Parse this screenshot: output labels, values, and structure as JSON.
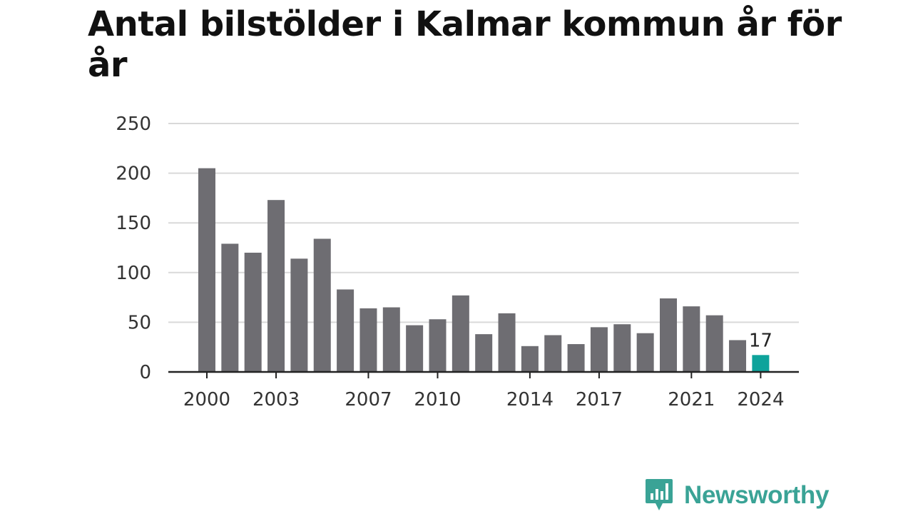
{
  "chart_data": {
    "type": "bar",
    "title": "Antal bilstölder i Kalmar kommun år för år",
    "xlabel": "",
    "ylabel": "",
    "ylim": [
      0,
      250
    ],
    "yticks": [
      0,
      50,
      100,
      150,
      200,
      250
    ],
    "xticks": [
      "2000",
      "2003",
      "2007",
      "2010",
      "2014",
      "2017",
      "2021",
      "2024"
    ],
    "categories": [
      "2000",
      "2001",
      "2002",
      "2003",
      "2004",
      "2005",
      "2006",
      "2007",
      "2008",
      "2009",
      "2010",
      "2011",
      "2012",
      "2013",
      "2014",
      "2015",
      "2016",
      "2017",
      "2018",
      "2019",
      "2020",
      "2021",
      "2022",
      "2023",
      "2024"
    ],
    "values": [
      205,
      129,
      120,
      173,
      114,
      134,
      83,
      64,
      65,
      47,
      53,
      77,
      38,
      59,
      26,
      37,
      28,
      45,
      48,
      39,
      74,
      66,
      57,
      32,
      17
    ],
    "highlight_index": 24,
    "data_labels": [
      {
        "index": 24,
        "text": "17"
      }
    ],
    "grid": true,
    "colors": {
      "bar": "#6e6d72",
      "highlight": "#0ea39b",
      "grid": "#d9d9d9",
      "axis": "#222222"
    }
  },
  "brand": {
    "name": "Newsworthy",
    "icon": "newsworthy-logo-icon",
    "color": "#3aa396"
  }
}
